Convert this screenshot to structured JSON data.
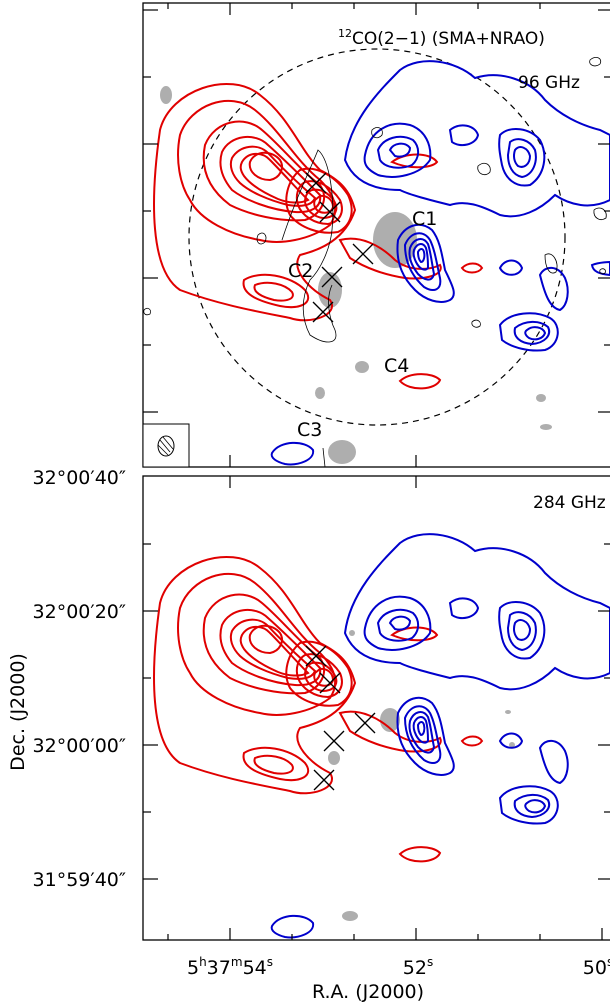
{
  "top_panel": {
    "title_sup": "12",
    "title_main": "CO(2−1) (SMA+NRAO)",
    "frequency": "96 GHz",
    "labels": {
      "c1": "C1",
      "c2": "C2",
      "c3": "C3",
      "c4": "C4"
    }
  },
  "bottom_panel": {
    "frequency": "284 GHz"
  },
  "axes": {
    "dec_ticks": [
      "32°00′40″",
      "32°00′20″",
      "32°00′00″",
      "31°59′40″"
    ],
    "ra_ticks": {
      "t54_h": "5",
      "t54_hu": "h",
      "t54_m": "37",
      "t54_mu": "m",
      "t54_s": "54",
      "t54_su": "s",
      "t52": "52",
      "t52_u": "s",
      "t50": "50",
      "t50_u": "s"
    },
    "ylabel": "Dec. (J2000)",
    "xlabel": "R.A. (J2000)"
  },
  "colors": {
    "redshifted": "#e00000",
    "blueshifted": "#0000cc",
    "continuum": "#999999"
  }
}
